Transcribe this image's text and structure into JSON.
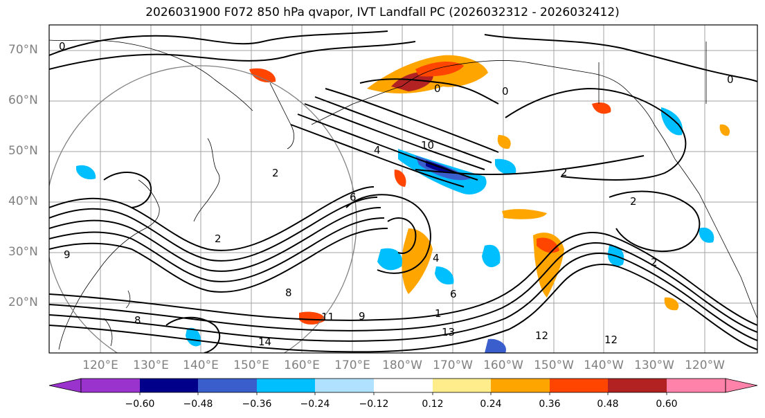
{
  "title": "2026031900 F072 850 hPa qvapor, IVT Landfall PC (2026032312 - 2026032412)",
  "lat_labels": [
    "70°N",
    "60°N",
    "50°N",
    "40°N",
    "30°N",
    "20°N"
  ],
  "lon_labels": [
    "120°E",
    "130°E",
    "140°E",
    "150°E",
    "160°E",
    "170°E",
    "180°W",
    "170°W",
    "160°W",
    "150°W",
    "140°W",
    "130°W",
    "120°W"
  ],
  "colorbar": {
    "ticks": [
      "−0.60",
      "−0.48",
      "−0.36",
      "−0.24",
      "−0.12",
      "0.12",
      "0.24",
      "0.36",
      "0.48",
      "0.60"
    ],
    "colors": [
      "#9a32cd",
      "#00008b",
      "#3a5fcd",
      "#00bfff",
      "#b0e2ff",
      "#ffffff",
      "#ffec8b",
      "#ffa500",
      "#ff4500",
      "#b22222",
      "#ff82ab"
    ]
  },
  "contour_labels": [
    "0",
    "0",
    "0",
    "0",
    "2",
    "2",
    "2",
    "2",
    "2",
    "4",
    "4",
    "6",
    "6",
    "8",
    "8",
    "9",
    "9",
    "10",
    "11",
    "12",
    "12",
    "13",
    "14",
    "1"
  ],
  "colors": {
    "grid": "#a0a0a0",
    "axis_label": "#808080",
    "contour": "#000000",
    "circle": "#808080"
  }
}
